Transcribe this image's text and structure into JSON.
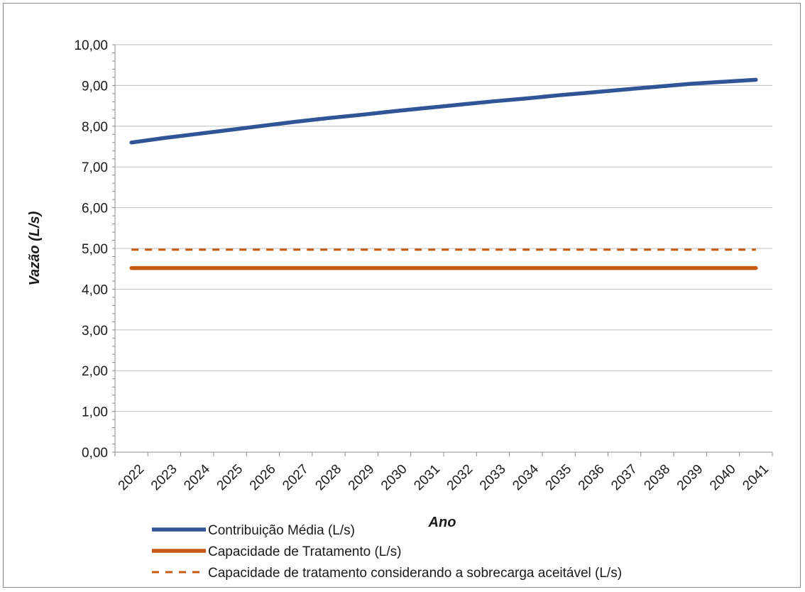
{
  "chart_data": {
    "type": "line",
    "title": "",
    "xlabel": "Ano",
    "ylabel": "Vazão (L/s)",
    "categories": [
      "2022",
      "2023",
      "2024",
      "2025",
      "2026",
      "2027",
      "2028",
      "2029",
      "2030",
      "2031",
      "2032",
      "2033",
      "2034",
      "2035",
      "2036",
      "2037",
      "2038",
      "2039",
      "2040",
      "2041"
    ],
    "ylim": [
      0,
      10
    ],
    "yticks": [
      "0,00",
      "1,00",
      "2,00",
      "3,00",
      "4,00",
      "5,00",
      "6,00",
      "7,00",
      "8,00",
      "9,00",
      "10,00"
    ],
    "grid": true,
    "legend_position": "bottom",
    "series": [
      {
        "name": "Contribuição Média (L/s)",
        "color": "#2F5597",
        "style": "solid",
        "values": [
          7.6,
          7.71,
          7.81,
          7.91,
          8.01,
          8.11,
          8.2,
          8.28,
          8.37,
          8.45,
          8.53,
          8.61,
          8.68,
          8.76,
          8.83,
          8.9,
          8.97,
          9.04,
          9.09,
          9.14
        ]
      },
      {
        "name": "Capacidade de Tratamento (L/s)",
        "color": "#C55A11",
        "style": "solid",
        "values": [
          4.52,
          4.52,
          4.52,
          4.52,
          4.52,
          4.52,
          4.52,
          4.52,
          4.52,
          4.52,
          4.52,
          4.52,
          4.52,
          4.52,
          4.52,
          4.52,
          4.52,
          4.52,
          4.52,
          4.52
        ]
      },
      {
        "name": "Capacidade de tratamento considerando a sobrecarga aceitável (L/s)",
        "color": "#C55A11",
        "style": "dashed",
        "values": [
          4.97,
          4.97,
          4.97,
          4.97,
          4.97,
          4.97,
          4.97,
          4.97,
          4.97,
          4.97,
          4.97,
          4.97,
          4.97,
          4.97,
          4.97,
          4.97,
          4.97,
          4.97,
          4.97,
          4.97
        ]
      }
    ]
  }
}
